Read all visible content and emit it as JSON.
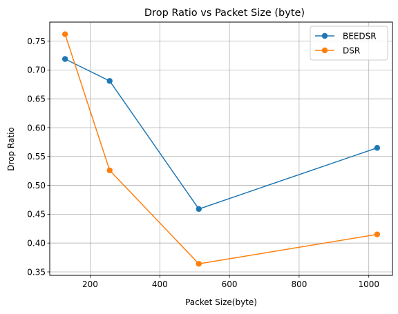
{
  "chart_data": {
    "type": "line",
    "title": "Drop Ratio  vs Packet Size (byte)",
    "xlabel": "Packet Size(byte)",
    "ylabel": "Drop Ratio",
    "x": [
      128,
      256,
      512,
      1024
    ],
    "series": [
      {
        "name": "BEEDSR",
        "color": "#1f77b4",
        "values": [
          0.719,
          0.681,
          0.459,
          0.565
        ]
      },
      {
        "name": "DSR",
        "color": "#ff7f0e",
        "values": [
          0.762,
          0.526,
          0.364,
          0.415
        ]
      }
    ],
    "xlim": [
      84,
      1068
    ],
    "ylim": [
      0.344,
      0.783
    ],
    "xticks": [
      200,
      400,
      600,
      800,
      1000
    ],
    "yticks": [
      0.35,
      0.4,
      0.45,
      0.5,
      0.55,
      0.6,
      0.65,
      0.7,
      0.75
    ],
    "xtick_labels": [
      "200",
      "400",
      "600",
      "800",
      "1000"
    ],
    "ytick_labels": [
      "0.35",
      "0.40",
      "0.45",
      "0.50",
      "0.55",
      "0.60",
      "0.65",
      "0.70",
      "0.75"
    ],
    "grid": true,
    "legend_position": "top-right",
    "marker": "circle"
  }
}
